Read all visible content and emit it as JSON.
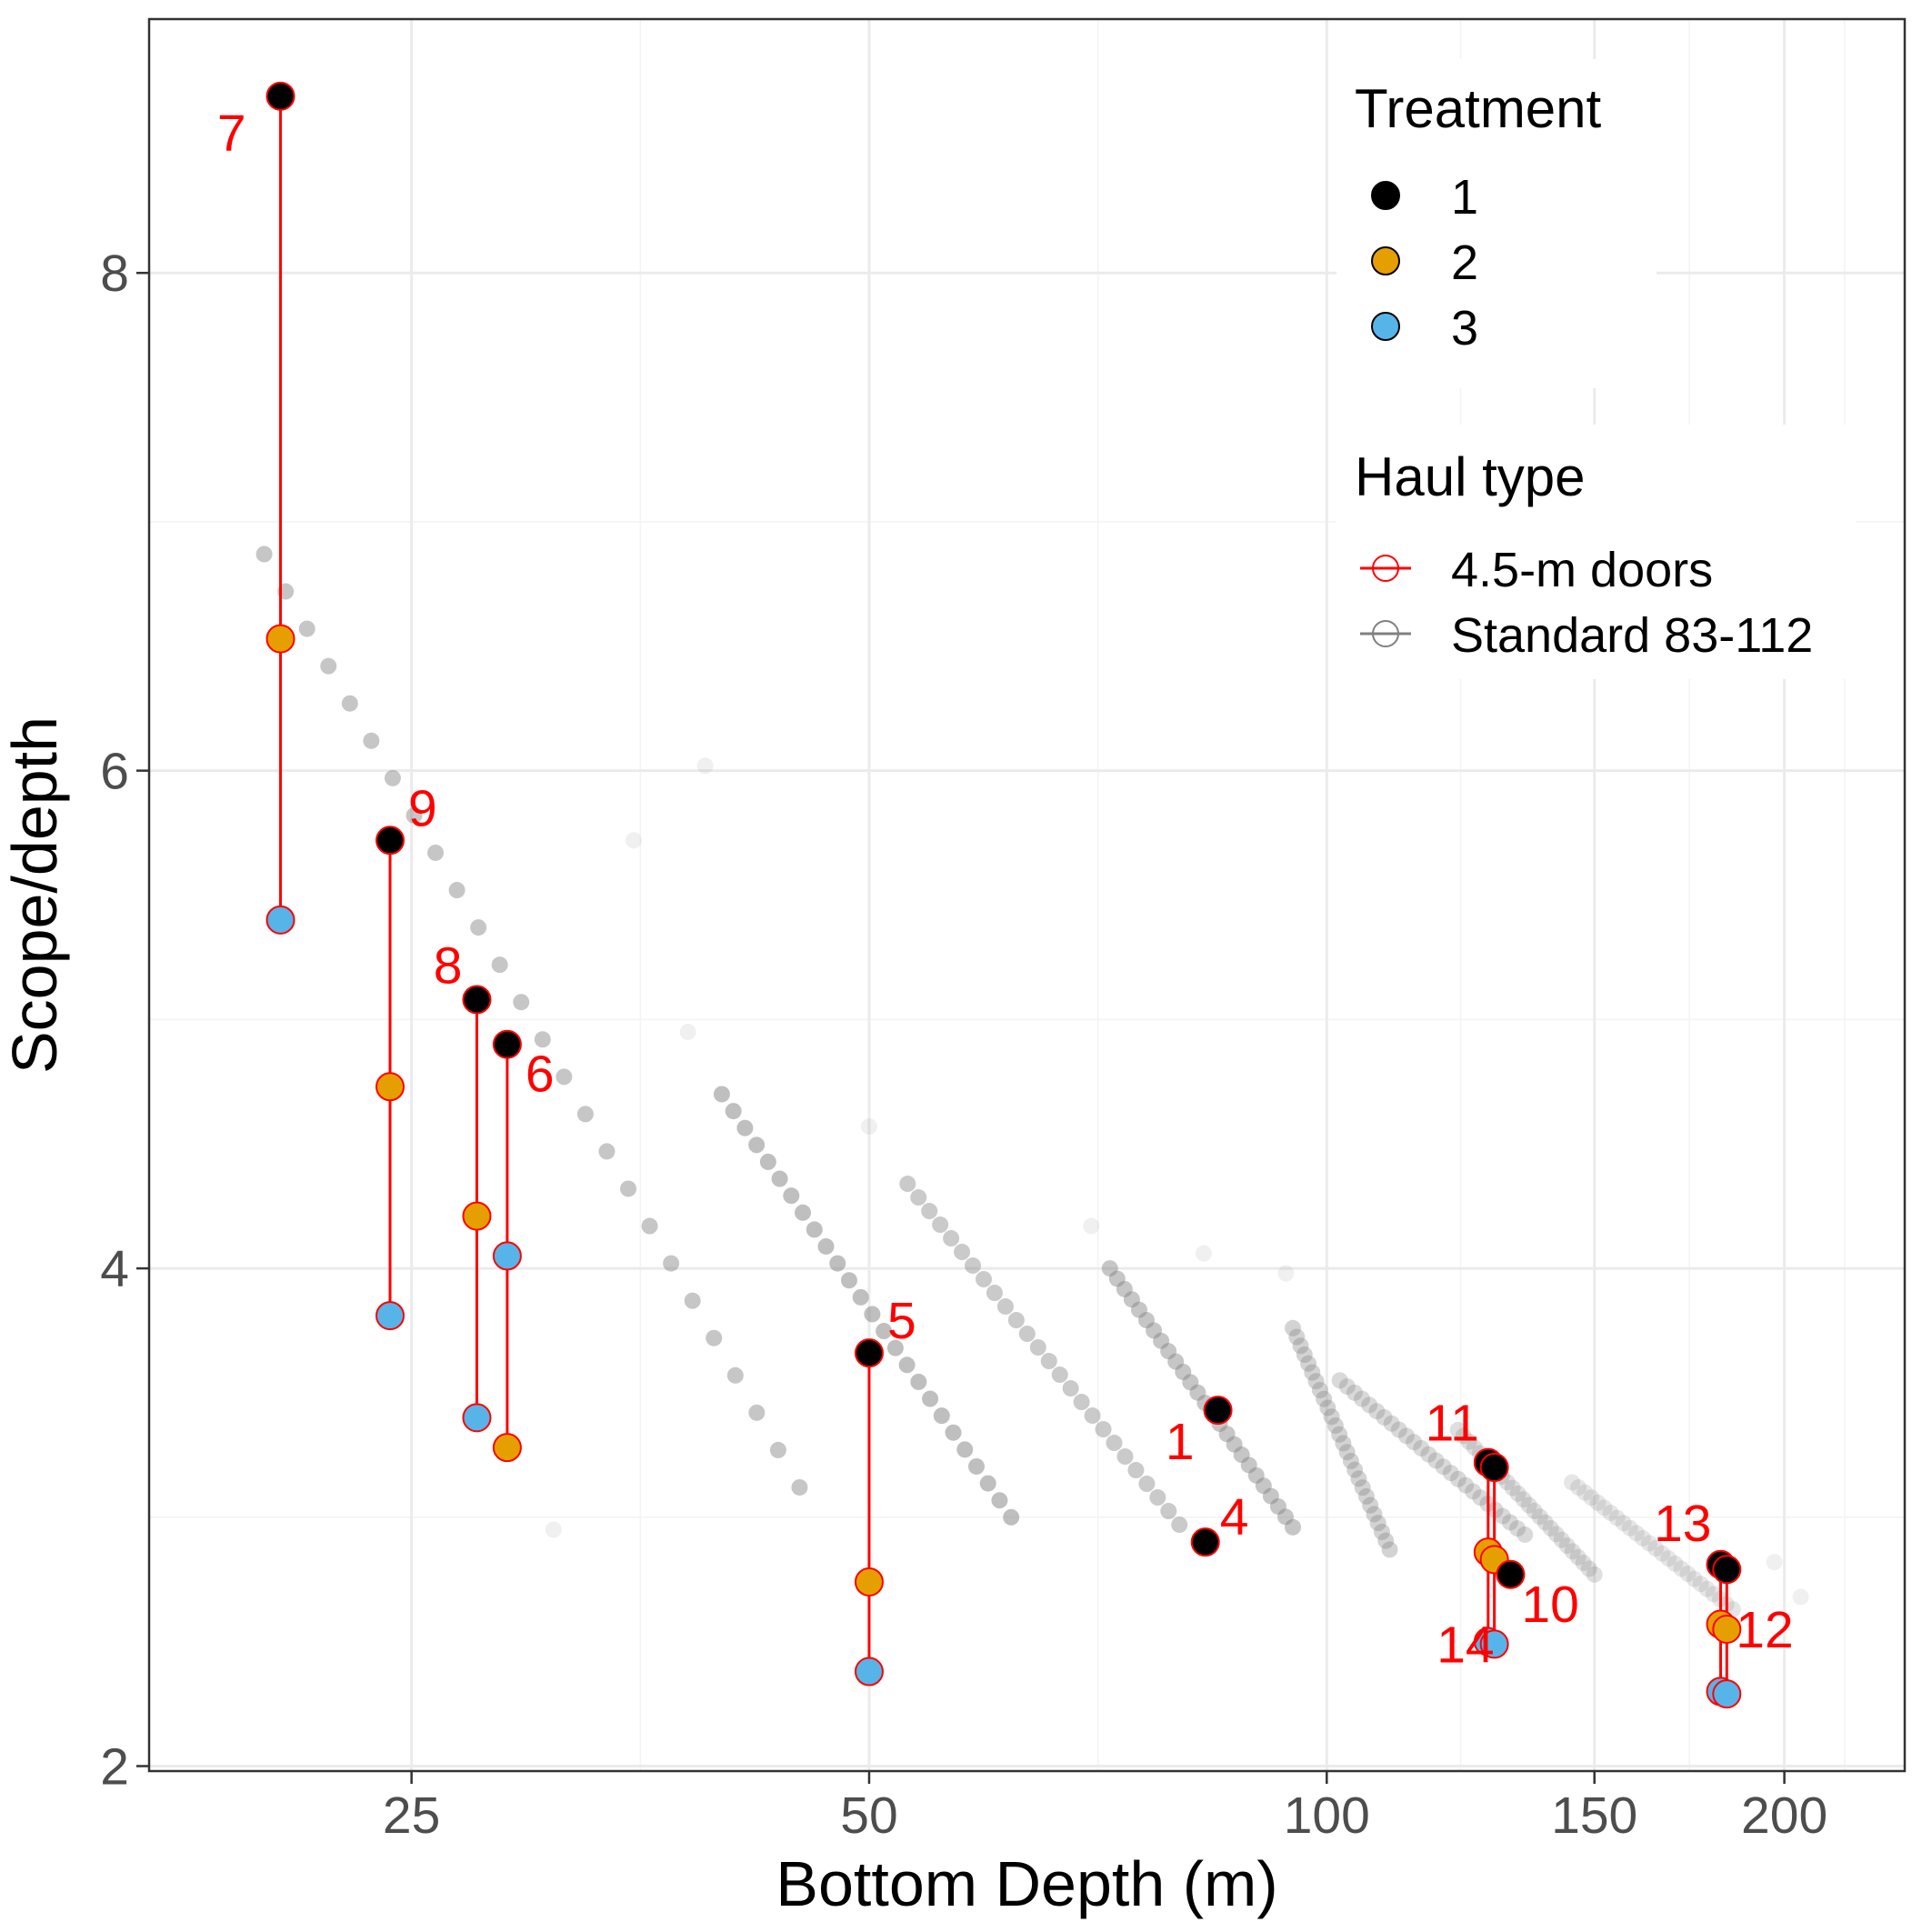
{
  "chart_data": {
    "type": "scatter",
    "xlabel": "Bottom Depth (m)",
    "ylabel": "Scope/depth",
    "x_scale": "log10",
    "xlim": [
      16.8,
      240
    ],
    "ylim": [
      1.98,
      9.02
    ],
    "x_ticks": [
      25,
      50,
      100,
      150,
      200
    ],
    "y_ticks": [
      2,
      4,
      6,
      8
    ],
    "grid": true,
    "legends": [
      {
        "title": "Treatment",
        "position": "top-right",
        "entries": [
          {
            "label": "1",
            "color": "#000000"
          },
          {
            "label": "2",
            "color": "#E69F00"
          },
          {
            "label": "3",
            "color": "#56B4E9"
          }
        ]
      },
      {
        "title": "Haul type",
        "position": "top-right",
        "entries": [
          {
            "label": "4.5-m doors",
            "color": "#ff0000"
          },
          {
            "label": "Standard 83-112",
            "color": "#808080"
          }
        ]
      }
    ],
    "series_treatment_colors": {
      "1": "#000000",
      "2": "#E69F00",
      "3": "#56B4E9"
    },
    "hauls_4_5m_doors": [
      {
        "haul": "7",
        "depth": 20.5,
        "scope_depth": {
          "1": 8.71,
          "2": 6.53,
          "3": 5.4
        }
      },
      {
        "haul": "9",
        "depth": 24.2,
        "scope_depth": {
          "1": 5.72,
          "2": 4.73,
          "3": 3.81
        }
      },
      {
        "haul": "8",
        "depth": 27.6,
        "scope_depth": {
          "1": 5.08,
          "2": 4.21,
          "3": 3.4
        }
      },
      {
        "haul": "6",
        "depth": 28.9,
        "scope_depth": {
          "1": 4.9,
          "2": 3.28,
          "3": 4.05
        }
      },
      {
        "haul": "5",
        "depth": 50,
        "scope_depth": {
          "1": 3.66,
          "2": 2.74,
          "3": 2.38
        }
      },
      {
        "haul": "1",
        "depth": 84.8,
        "scope_depth": {
          "1": 3.43
        }
      },
      {
        "haul": "4",
        "depth": 83.2,
        "scope_depth": {
          "1": 2.9
        }
      },
      {
        "haul": "11",
        "depth": 127.7,
        "scope_depth": {
          "1": 3.22,
          "2": 2.86,
          "3": 2.5
        }
      },
      {
        "haul": "14",
        "depth": 128.9,
        "scope_depth": {
          "1": 3.2,
          "2": 2.83,
          "3": 2.49
        }
      },
      {
        "haul": "10",
        "depth": 132.1,
        "scope_depth": {
          "1": 2.77
        }
      },
      {
        "haul": "13",
        "depth": 181.6,
        "scope_depth": {
          "1": 2.81,
          "2": 2.57,
          "3": 2.3
        }
      },
      {
        "haul": "12",
        "depth": 183.3,
        "scope_depth": {
          "1": 2.79,
          "2": 2.55,
          "3": 2.29
        }
      }
    ],
    "hauls_standard_83_112": {
      "description_of_marks": "semi-transparent grey points",
      "curves": [
        {
          "depth_range": [
            20,
            45
          ],
          "scope_depth_range": [
            6.87,
            3.12
          ]
        },
        {
          "depth_range": [
            40,
            62
          ],
          "scope_depth_range": [
            4.7,
            3.0
          ]
        },
        {
          "depth_range": [
            53,
            80
          ],
          "scope_depth_range": [
            4.34,
            2.97
          ]
        },
        {
          "depth_range": [
            72,
            95
          ],
          "scope_depth_range": [
            4.0,
            2.96
          ]
        },
        {
          "depth_range": [
            95,
            110
          ],
          "scope_depth_range": [
            3.76,
            2.87
          ]
        },
        {
          "depth_range": [
            102,
            135
          ],
          "scope_depth_range": [
            3.55,
            2.93
          ]
        },
        {
          "depth_range": [
            122,
            150
          ],
          "scope_depth_range": [
            3.35,
            2.77
          ]
        },
        {
          "depth_range": [
            145,
            185
          ],
          "scope_depth_range": [
            3.14,
            2.63
          ]
        }
      ],
      "scattered_points": [
        {
          "depth": 31,
          "scope_depth": 2.95
        },
        {
          "depth": 35,
          "scope_depth": 5.72
        },
        {
          "depth": 38,
          "scope_depth": 4.95
        },
        {
          "depth": 39,
          "scope_depth": 6.02
        },
        {
          "depth": 50,
          "scope_depth": 4.57
        },
        {
          "depth": 70,
          "scope_depth": 4.17
        },
        {
          "depth": 83,
          "scope_depth": 4.06
        },
        {
          "depth": 94,
          "scope_depth": 3.98
        },
        {
          "depth": 197,
          "scope_depth": 2.82
        },
        {
          "depth": 205,
          "scope_depth": 2.68
        }
      ]
    }
  }
}
